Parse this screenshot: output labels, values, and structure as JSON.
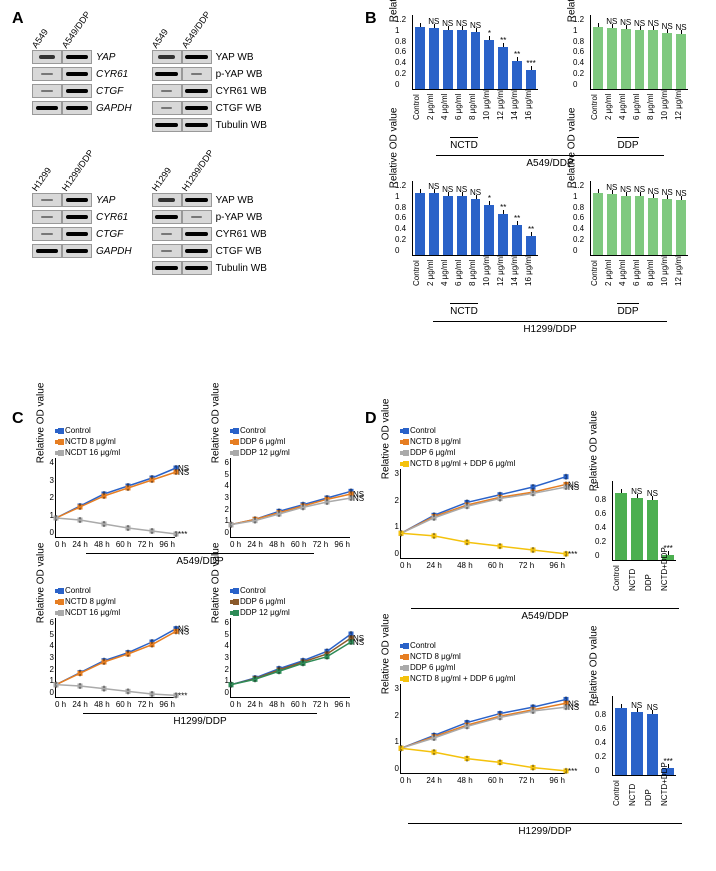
{
  "panelA": {
    "groups": [
      {
        "lanes": [
          "A549",
          "A549/DDP"
        ],
        "left": [
          {
            "name": "YAP",
            "italic": true,
            "bands": [
              "medium",
              "dark"
            ]
          },
          {
            "name": "CYR61",
            "italic": true,
            "bands": [
              "light",
              "dark"
            ]
          },
          {
            "name": "CTGF",
            "italic": true,
            "bands": [
              "light",
              "dark"
            ]
          },
          {
            "name": "GAPDH",
            "italic": true,
            "bands": [
              "dark",
              "dark"
            ]
          }
        ],
        "right": [
          {
            "name": "YAP WB",
            "bands": [
              "medium",
              "dark"
            ]
          },
          {
            "name": "p-YAP WB",
            "bands": [
              "dark",
              "light"
            ]
          },
          {
            "name": "CYR61 WB",
            "bands": [
              "light",
              "dark"
            ]
          },
          {
            "name": "CTGF WB",
            "bands": [
              "light",
              "dark"
            ]
          },
          {
            "name": "Tubulin WB",
            "bands": [
              "dark",
              "dark"
            ]
          }
        ]
      },
      {
        "lanes": [
          "H1299",
          "H1299/DDP"
        ],
        "left": [
          {
            "name": "YAP",
            "italic": true,
            "bands": [
              "light",
              "dark"
            ]
          },
          {
            "name": "CYR61",
            "italic": true,
            "bands": [
              "light",
              "dark"
            ]
          },
          {
            "name": "CTGF",
            "italic": true,
            "bands": [
              "light",
              "dark"
            ]
          },
          {
            "name": "GAPDH",
            "italic": true,
            "bands": [
              "dark",
              "dark"
            ]
          }
        ],
        "right": [
          {
            "name": "YAP WB",
            "bands": [
              "medium",
              "dark"
            ]
          },
          {
            "name": "p-YAP WB",
            "bands": [
              "dark",
              "light"
            ]
          },
          {
            "name": "CYR61 WB",
            "bands": [
              "light",
              "dark"
            ]
          },
          {
            "name": "CTGF WB",
            "bands": [
              "light",
              "dark"
            ]
          },
          {
            "name": "Tubulin WB",
            "bands": [
              "dark",
              "dark"
            ]
          }
        ]
      }
    ]
  },
  "panelB": {
    "ylabel": "Relative OD value",
    "y_ticks": [
      "0",
      "0.2",
      "0.4",
      "0.6",
      "0.8",
      "1",
      "1.2"
    ],
    "ylim": [
      0,
      1.2
    ],
    "charts": [
      {
        "color": "#2a62c8",
        "labels": [
          "Control",
          "2 μg/ml",
          "4 μg/ml",
          "6 μg/ml",
          "8 μg/ml",
          "10 μg/ml",
          "12 μg/ml",
          "14 μg/ml",
          "16 μg/ml"
        ],
        "values": [
          1.0,
          0.98,
          0.95,
          0.94,
          0.92,
          0.78,
          0.68,
          0.45,
          0.3
        ],
        "sig": [
          "",
          "NS",
          "NS",
          "NS",
          "NS",
          "*",
          "**",
          "**",
          "***"
        ],
        "sublabel": "NCTD"
      },
      {
        "color": "#7fc97f",
        "labels": [
          "Control",
          "2 μg/ml",
          "4 μg/ml",
          "6 μg/ml",
          "8 μg/ml",
          "10 μg/ml",
          "12 μg/ml"
        ],
        "values": [
          1.0,
          0.97,
          0.96,
          0.95,
          0.94,
          0.9,
          0.88
        ],
        "sig": [
          "",
          "NS",
          "NS",
          "NS",
          "NS",
          "NS",
          "NS"
        ],
        "sublabel": "DDP"
      },
      {
        "color": "#2a62c8",
        "labels": [
          "Control",
          "2 μg/ml",
          "4 μg/ml",
          "6 μg/ml",
          "8 μg/ml",
          "10 μg/ml",
          "12 μg/ml",
          "14 μg/ml",
          "16 μg/ml"
        ],
        "values": [
          1.0,
          0.99,
          0.95,
          0.94,
          0.9,
          0.8,
          0.65,
          0.48,
          0.3
        ],
        "sig": [
          "",
          "NS",
          "NS",
          "NS",
          "NS",
          "*",
          "**",
          "**",
          "**"
        ],
        "sublabel": "NCTD"
      },
      {
        "color": "#7fc97f",
        "labels": [
          "Control",
          "2 μg/ml",
          "4 μg/ml",
          "6 μg/ml",
          "8 μg/ml",
          "10 μg/ml",
          "12 μg/ml"
        ],
        "values": [
          1.0,
          0.98,
          0.95,
          0.94,
          0.92,
          0.9,
          0.88
        ],
        "sig": [
          "",
          "NS",
          "NS",
          "NS",
          "NS",
          "NS",
          "NS"
        ],
        "sublabel": "DDP"
      }
    ],
    "cellLines": [
      "A549/DDP",
      "H1299/DDP"
    ]
  },
  "panelC": {
    "ylabel": "Relative OD value",
    "x_ticks": [
      "0 h",
      "24 h",
      "48 h",
      "60 h",
      "72 h",
      "96 h"
    ],
    "charts": [
      {
        "ylim": [
          0,
          4
        ],
        "y_ticks": [
          "0",
          "1",
          "2",
          "3",
          "4"
        ],
        "legend": [
          {
            "label": "Control",
            "color": "#2a62c8"
          },
          {
            "label": "NCTD 8 μg/ml",
            "color": "#e67e22"
          },
          {
            "label": "NCDT 16 μg/ml",
            "color": "#aaaaaa"
          }
        ],
        "series": [
          {
            "color": "#2a62c8",
            "y": [
              1.0,
              1.6,
              2.2,
              2.6,
              3.0,
              3.5
            ]
          },
          {
            "color": "#e67e22",
            "y": [
              1.0,
              1.55,
              2.1,
              2.5,
              2.9,
              3.3
            ]
          },
          {
            "color": "#aaaaaa",
            "y": [
              1.0,
              0.9,
              0.7,
              0.5,
              0.35,
              0.2
            ]
          }
        ],
        "end_sig": [
          "NS",
          "NS",
          "***"
        ]
      },
      {
        "ylim": [
          0,
          6
        ],
        "y_ticks": [
          "0",
          "1",
          "2",
          "3",
          "4",
          "5",
          "6"
        ],
        "legend": [
          {
            "label": "Control",
            "color": "#2a62c8"
          },
          {
            "label": "DDP 6 μg/ml",
            "color": "#e67e22"
          },
          {
            "label": "DDP 12 μg/ml",
            "color": "#aaaaaa"
          }
        ],
        "series": [
          {
            "color": "#2a62c8",
            "y": [
              1.0,
              1.4,
              2.0,
              2.5,
              3.0,
              3.5
            ]
          },
          {
            "color": "#e67e22",
            "y": [
              1.0,
              1.4,
              1.9,
              2.4,
              2.9,
              3.3
            ]
          },
          {
            "color": "#aaaaaa",
            "y": [
              1.0,
              1.3,
              1.8,
              2.3,
              2.7,
              3.0
            ]
          }
        ],
        "end_sig": [
          "",
          "NS",
          "NS"
        ]
      },
      {
        "ylim": [
          0,
          6
        ],
        "y_ticks": [
          "0",
          "1",
          "2",
          "3",
          "4",
          "5",
          "6"
        ],
        "legend": [
          {
            "label": "Control",
            "color": "#2a62c8"
          },
          {
            "label": "NCTD 8 μg/ml",
            "color": "#e67e22"
          },
          {
            "label": "NCDT 16 μg/ml",
            "color": "#aaaaaa"
          }
        ],
        "series": [
          {
            "color": "#2a62c8",
            "y": [
              1.0,
              1.9,
              2.8,
              3.4,
              4.2,
              5.2
            ]
          },
          {
            "color": "#e67e22",
            "y": [
              1.0,
              1.85,
              2.7,
              3.3,
              4.0,
              5.0
            ]
          },
          {
            "color": "#aaaaaa",
            "y": [
              1.0,
              0.9,
              0.7,
              0.5,
              0.3,
              0.2
            ]
          }
        ],
        "end_sig": [
          "NS",
          "NS",
          "***"
        ]
      },
      {
        "ylim": [
          0,
          6
        ],
        "y_ticks": [
          "0",
          "1",
          "2",
          "3",
          "4",
          "5",
          "6"
        ],
        "legend": [
          {
            "label": "Control",
            "color": "#2a62c8"
          },
          {
            "label": "DDP 6 μg/ml",
            "color": "#8b5a2b"
          },
          {
            "label": "DDP 12 μg/ml",
            "color": "#2e8b57"
          }
        ],
        "series": [
          {
            "color": "#2a62c8",
            "y": [
              1.0,
              1.5,
              2.2,
              2.8,
              3.5,
              4.8
            ]
          },
          {
            "color": "#8b5a2b",
            "y": [
              1.0,
              1.45,
              2.1,
              2.7,
              3.3,
              4.5
            ]
          },
          {
            "color": "#2e8b57",
            "y": [
              1.0,
              1.4,
              2.0,
              2.6,
              3.1,
              4.2
            ]
          }
        ],
        "end_sig": [
          "",
          "NS",
          "NS"
        ]
      }
    ],
    "cellLines": [
      "A549/DDP",
      "H1299/DDP"
    ]
  },
  "panelD": {
    "ylabel": "Relative OD value",
    "x_ticks": [
      "0 h",
      "24 h",
      "48 h",
      "60 h",
      "72 h",
      "96 h"
    ],
    "line_charts": [
      {
        "ylim": [
          0,
          3.5
        ],
        "y_ticks": [
          "0",
          "1",
          "2",
          "3"
        ],
        "legend": [
          {
            "label": "Control",
            "color": "#2a62c8"
          },
          {
            "label": "NCTD 8 μg/ml",
            "color": "#e67e22"
          },
          {
            "label": "DDP 6 μg/ml",
            "color": "#aaaaaa"
          },
          {
            "label": "NCTD 8 μg/ml + DDP 6 μg/ml",
            "color": "#f4c20d"
          }
        ],
        "series": [
          {
            "color": "#2a62c8",
            "y": [
              1.0,
              1.7,
              2.2,
              2.5,
              2.8,
              3.2
            ]
          },
          {
            "color": "#e67e22",
            "y": [
              1.0,
              1.65,
              2.1,
              2.4,
              2.6,
              2.9
            ]
          },
          {
            "color": "#aaaaaa",
            "y": [
              1.0,
              1.6,
              2.05,
              2.35,
              2.55,
              2.8
            ]
          },
          {
            "color": "#f4c20d",
            "y": [
              1.0,
              0.9,
              0.65,
              0.5,
              0.35,
              0.2
            ]
          }
        ],
        "end_sig": [
          "",
          "NS",
          "NS",
          "***"
        ]
      },
      {
        "ylim": [
          0,
          3.5
        ],
        "y_ticks": [
          "0",
          "1",
          "2",
          "3"
        ],
        "legend": [
          {
            "label": "Control",
            "color": "#2a62c8"
          },
          {
            "label": "NCTD 8 μg/ml",
            "color": "#e67e22"
          },
          {
            "label": "DDP 6 μg/ml",
            "color": "#aaaaaa"
          },
          {
            "label": "NCTD 8 μg/ml + DDP 6 μg/ml",
            "color": "#f4c20d"
          }
        ],
        "series": [
          {
            "color": "#2a62c8",
            "y": [
              1.0,
              1.5,
              2.0,
              2.35,
              2.6,
              2.9
            ]
          },
          {
            "color": "#e67e22",
            "y": [
              1.0,
              1.45,
              1.9,
              2.25,
              2.5,
              2.75
            ]
          },
          {
            "color": "#aaaaaa",
            "y": [
              1.0,
              1.4,
              1.85,
              2.2,
              2.45,
              2.6
            ]
          },
          {
            "color": "#f4c20d",
            "y": [
              1.0,
              0.85,
              0.6,
              0.45,
              0.25,
              0.12
            ]
          }
        ],
        "end_sig": [
          "",
          "NS",
          "NS",
          "***"
        ]
      }
    ],
    "bar_charts": [
      {
        "color": "#4caf50",
        "ylim": [
          0,
          1.2
        ],
        "y_ticks": [
          "0",
          "0.2",
          "0.4",
          "0.6",
          "0.8",
          "1"
        ],
        "labels": [
          "Control",
          "NCTD",
          "DDP",
          "NCTD+DDP"
        ],
        "values": [
          1.0,
          0.93,
          0.9,
          0.08
        ],
        "sig": [
          "",
          "NS",
          "NS",
          "***"
        ]
      },
      {
        "color": "#2a62c8",
        "ylim": [
          0,
          1.2
        ],
        "y_ticks": [
          "0",
          "0.2",
          "0.4",
          "0.6",
          "0.8",
          "1"
        ],
        "labels": [
          "Control",
          "NCTD",
          "DDP",
          "NCTD+DDP"
        ],
        "values": [
          1.0,
          0.95,
          0.92,
          0.1
        ],
        "sig": [
          "",
          "NS",
          "NS",
          "***"
        ]
      }
    ],
    "cellLines": [
      "A549/DDP",
      "H1299/DDP"
    ]
  },
  "labels": {
    "A": "A",
    "B": "B",
    "C": "C",
    "D": "D"
  }
}
